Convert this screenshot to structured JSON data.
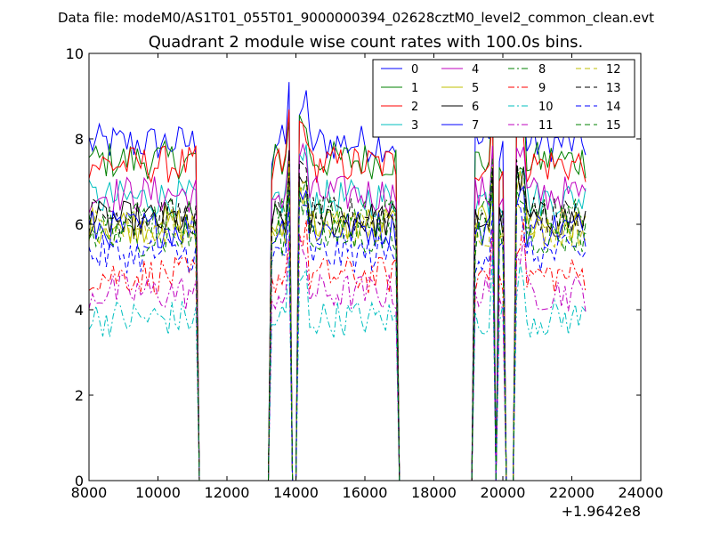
{
  "chart_data": {
    "type": "line",
    "suptitle": "Data file: modeM0/AS1T01_055T01_9000000394_02628cztM0_level2_common_clean.evt",
    "title": "Quadrant 2 module wise count rates with 100.0s bins.",
    "xlabel": "",
    "ylabel": "",
    "x_offset_label": "+1.9642e8",
    "xlim": [
      8000,
      24000
    ],
    "ylim": [
      0,
      10
    ],
    "x_ticks": [
      8000,
      10000,
      12000,
      14000,
      16000,
      18000,
      20000,
      22000,
      24000
    ],
    "x_tick_labels": [
      "8000",
      "10000",
      "12000",
      "14000",
      "16000",
      "18000",
      "20000",
      "22000",
      "24000"
    ],
    "y_ticks": [
      0,
      2,
      4,
      6,
      8,
      10
    ],
    "y_tick_labels": [
      "0",
      "2",
      "4",
      "6",
      "8",
      "10"
    ],
    "grid": false,
    "legend_position": "top-right",
    "bin_width": 100,
    "x_start": 8000,
    "x_end": 22400,
    "gaps": [
      [
        11200,
        13200
      ],
      [
        13900,
        14000
      ],
      [
        17000,
        19100
      ],
      [
        19800,
        19800
      ],
      [
        20100,
        20300
      ]
    ],
    "series": [
      {
        "name": "0",
        "color": "#0000ff",
        "dash": "solid",
        "level": 7.9
      },
      {
        "name": "1",
        "color": "#008000",
        "dash": "solid",
        "level": 7.5
      },
      {
        "name": "2",
        "color": "#ff0000",
        "dash": "solid",
        "level": 7.4
      },
      {
        "name": "3",
        "color": "#00bfbf",
        "dash": "solid",
        "level": 6.6
      },
      {
        "name": "4",
        "color": "#bf00bf",
        "dash": "solid",
        "level": 6.7
      },
      {
        "name": "5",
        "color": "#bfbf00",
        "dash": "solid",
        "level": 6.0
      },
      {
        "name": "6",
        "color": "#000000",
        "dash": "solid",
        "level": 6.1
      },
      {
        "name": "7",
        "color": "#0000ff",
        "dash": "solid",
        "level": 5.9
      },
      {
        "name": "8",
        "color": "#008000",
        "dash": "dashdot",
        "level": 6.2
      },
      {
        "name": "9",
        "color": "#ff0000",
        "dash": "dashdot",
        "level": 4.8
      },
      {
        "name": "10",
        "color": "#00bfbf",
        "dash": "dashdot",
        "level": 3.8
      },
      {
        "name": "11",
        "color": "#bf00bf",
        "dash": "dashdot",
        "level": 4.4
      },
      {
        "name": "12",
        "color": "#bfbf00",
        "dash": "dashed",
        "level": 5.9
      },
      {
        "name": "13",
        "color": "#000000",
        "dash": "dashed",
        "level": 6.2
      },
      {
        "name": "14",
        "color": "#0000ff",
        "dash": "dashed",
        "level": 5.3
      },
      {
        "name": "15",
        "color": "#008000",
        "dash": "dashed",
        "level": 5.7
      }
    ]
  }
}
